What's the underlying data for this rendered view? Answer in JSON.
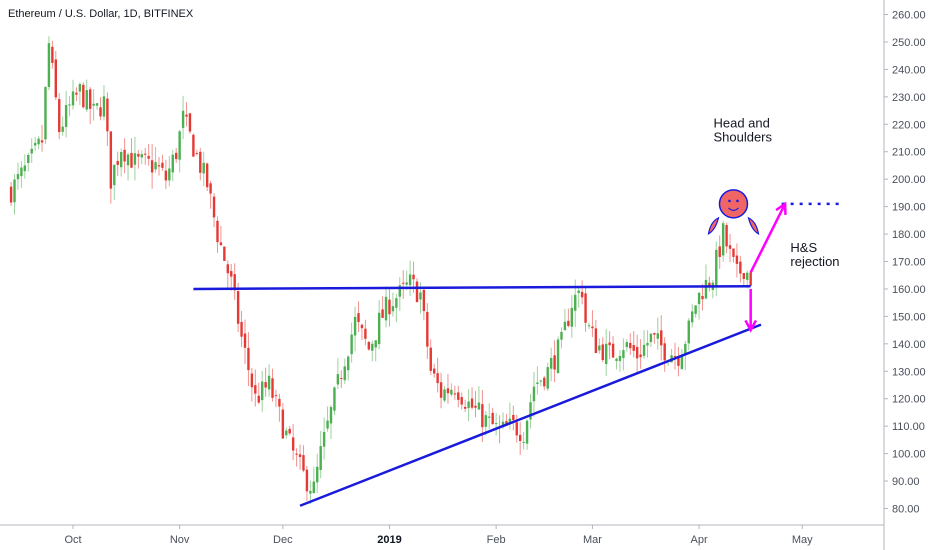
{
  "chart_data": {
    "type": "candlestick",
    "title": "Ethereum / U.S. Dollar, 1D, BITFINEX",
    "ylim": [
      75,
      265
    ],
    "grid": false,
    "y_axis_position": "right",
    "y_ticks": [
      "260.00",
      "250.00",
      "240.00",
      "230.00",
      "220.00",
      "210.00",
      "200.00",
      "190.00",
      "180.00",
      "170.00",
      "160.00",
      "150.00",
      "140.00",
      "130.00",
      "120.00",
      "110.00",
      "100.00",
      "90.00",
      "80.00"
    ],
    "x_ticks": [
      {
        "label": "Oct",
        "day": 0
      },
      {
        "label": "Nov",
        "day": 31
      },
      {
        "label": "Dec",
        "day": 61
      },
      {
        "label": "2019",
        "day": 92,
        "bold": true
      },
      {
        "label": "Feb",
        "day": 123
      },
      {
        "label": "Mar",
        "day": 151
      },
      {
        "label": "Apr",
        "day": 182
      },
      {
        "label": "May",
        "day": 212
      }
    ],
    "colors": {
      "up": "#26a69a",
      "up_fill": "#4caf50",
      "down": "#e53935",
      "trendline": "#1a1adc",
      "arrow": "#ff00ff",
      "face": "#f06666"
    },
    "price_waypoints": [
      {
        "day": -18,
        "price": 196
      },
      {
        "day": -13,
        "price": 205
      },
      {
        "day": -9,
        "price": 214
      },
      {
        "day": -7,
        "price": 249
      },
      {
        "day": -4,
        "price": 218
      },
      {
        "day": -1,
        "price": 226
      },
      {
        "day": 2,
        "price": 232
      },
      {
        "day": 6,
        "price": 224
      },
      {
        "day": 9,
        "price": 228
      },
      {
        "day": 11,
        "price": 200
      },
      {
        "day": 14,
        "price": 212
      },
      {
        "day": 18,
        "price": 206
      },
      {
        "day": 24,
        "price": 205
      },
      {
        "day": 27,
        "price": 200
      },
      {
        "day": 30,
        "price": 210
      },
      {
        "day": 32,
        "price": 222
      },
      {
        "day": 35,
        "price": 212
      },
      {
        "day": 39,
        "price": 198
      },
      {
        "day": 42,
        "price": 180
      },
      {
        "day": 46,
        "price": 162
      },
      {
        "day": 49,
        "price": 142
      },
      {
        "day": 53,
        "price": 120
      },
      {
        "day": 57,
        "price": 125
      },
      {
        "day": 61,
        "price": 110
      },
      {
        "day": 64,
        "price": 100
      },
      {
        "day": 67,
        "price": 92
      },
      {
        "day": 70,
        "price": 87
      },
      {
        "day": 72,
        "price": 100
      },
      {
        "day": 75,
        "price": 115
      },
      {
        "day": 79,
        "price": 135
      },
      {
        "day": 82,
        "price": 148
      },
      {
        "day": 86,
        "price": 138
      },
      {
        "day": 89,
        "price": 148
      },
      {
        "day": 92,
        "price": 155
      },
      {
        "day": 95,
        "price": 158
      },
      {
        "day": 98,
        "price": 162
      },
      {
        "day": 101,
        "price": 158
      },
      {
        "day": 104,
        "price": 130
      },
      {
        "day": 107,
        "price": 122
      },
      {
        "day": 111,
        "price": 125
      },
      {
        "day": 115,
        "price": 118
      },
      {
        "day": 120,
        "price": 112
      },
      {
        "day": 124,
        "price": 108
      },
      {
        "day": 128,
        "price": 110
      },
      {
        "day": 131,
        "price": 108
      },
      {
        "day": 134,
        "price": 125
      },
      {
        "day": 138,
        "price": 130
      },
      {
        "day": 142,
        "price": 140
      },
      {
        "day": 145,
        "price": 155
      },
      {
        "day": 148,
        "price": 160
      },
      {
        "day": 149,
        "price": 148
      },
      {
        "day": 152,
        "price": 140
      },
      {
        "day": 156,
        "price": 136
      },
      {
        "day": 160,
        "price": 140
      },
      {
        "day": 164,
        "price": 136
      },
      {
        "day": 168,
        "price": 142
      },
      {
        "day": 172,
        "price": 138
      },
      {
        "day": 176,
        "price": 136
      },
      {
        "day": 179,
        "price": 145
      },
      {
        "day": 181,
        "price": 155
      },
      {
        "day": 183,
        "price": 160
      },
      {
        "day": 186,
        "price": 165
      },
      {
        "day": 189,
        "price": 180
      },
      {
        "day": 191,
        "price": 172
      },
      {
        "day": 193,
        "price": 165
      },
      {
        "day": 195,
        "price": 168
      },
      {
        "day": 197,
        "price": 164
      }
    ],
    "annotations": {
      "neckline": {
        "from": {
          "day": 35,
          "price": 160
        },
        "to": {
          "day": 197,
          "price": 161
        }
      },
      "support": {
        "from": {
          "day": 66,
          "price": 81
        },
        "to": {
          "day": 200,
          "price": 147
        }
      },
      "target_line": {
        "from": {
          "day": 206,
          "price": 191
        },
        "to": {
          "day": 224,
          "price": 191
        }
      },
      "arrow_up": {
        "from": {
          "day": 197,
          "price": 166
        },
        "to": {
          "day": 207,
          "price": 191
        }
      },
      "arrow_down": {
        "from": {
          "day": 197,
          "price": 160
        },
        "to": {
          "day": 197,
          "price": 145
        }
      },
      "pattern_label_lines": [
        "Head and",
        "Shoulders"
      ],
      "pattern_label_pos": {
        "day": 192,
        "price": 205
      },
      "rejection_label_lines": [
        "H&S",
        "rejection"
      ],
      "rejection_label_pos": {
        "day": 210,
        "price": 175
      },
      "face_center": {
        "day": 192,
        "price": 191
      }
    }
  }
}
